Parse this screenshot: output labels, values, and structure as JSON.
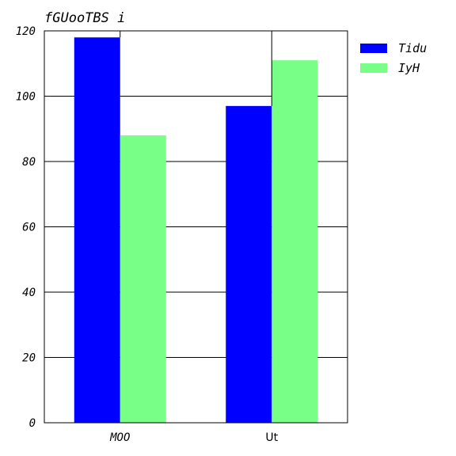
{
  "chart_data": {
    "type": "bar",
    "title": "fGUooTBS i",
    "xlabel": "",
    "ylabel": "",
    "categories": [
      "MOO",
      "Ut"
    ],
    "series": [
      {
        "name": "Tidu",
        "values": [
          118,
          97
        ],
        "color": "#0000ff"
      },
      {
        "name": "IyH",
        "values": [
          88,
          111
        ],
        "color": "#77ff88"
      }
    ],
    "ylim": [
      0,
      120
    ],
    "yticks": [
      0,
      20,
      40,
      60,
      80,
      100,
      120
    ],
    "grid": "y-major",
    "legend_position": "top-right"
  }
}
